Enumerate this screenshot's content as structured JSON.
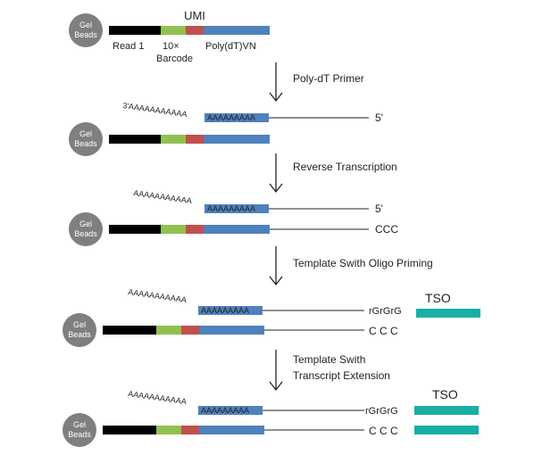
{
  "bead_label": [
    "Gel",
    "Beads"
  ],
  "segment_colors": {
    "read1": "#000000",
    "barcode": "#92c050",
    "umi": "#c0504d",
    "polydt": "#4f81bd",
    "bead": "#7f7f7f",
    "tso": "#1aaea5"
  },
  "labels": {
    "umi": "UMI",
    "read1": "Read 1",
    "barcode_prefix": "10×",
    "barcode": "Barcode",
    "polydt": "Poly(dT)VN",
    "polyA_tail": "AAAAAAAAAAA",
    "polyA_tail_3prime": "3'AAAAAAAAAAA",
    "polyT_block": "AAAAAAAAA",
    "five_prime": "5'",
    "ccc": "CCC",
    "ccc_spaced": "C C C",
    "rgrgrg": "rGrGrG",
    "tso": "TSO"
  },
  "steps": [
    "Poly-dT Primer",
    "Reverse Transcription",
    "Template Swith Oligo Priming",
    "Template Swith",
    "Transcript Extension"
  ]
}
